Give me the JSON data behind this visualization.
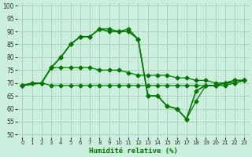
{
  "xlabel": "Humidité relative (%)",
  "background_color": "#cceedd",
  "grid_color": "#aaccbb",
  "line_color": "#007700",
  "xlim": [
    -0.5,
    23.5
  ],
  "ylim": [
    49,
    101
  ],
  "yticks": [
    50,
    55,
    60,
    65,
    70,
    75,
    80,
    85,
    90,
    95,
    100
  ],
  "xticks": [
    0,
    1,
    2,
    3,
    4,
    5,
    6,
    7,
    8,
    9,
    10,
    11,
    12,
    13,
    14,
    15,
    16,
    17,
    18,
    19,
    20,
    21,
    22,
    23
  ],
  "line1_x": [
    0,
    1,
    2,
    3,
    4,
    5,
    6,
    7,
    8,
    9,
    10,
    11,
    12,
    13,
    14,
    15,
    16,
    17,
    18,
    19,
    20,
    21,
    22,
    23
  ],
  "line1_y": [
    69,
    70,
    70,
    69,
    69,
    69,
    69,
    69,
    69,
    69,
    69,
    69,
    69,
    69,
    69,
    69,
    69,
    69,
    69,
    69,
    69,
    69,
    70,
    71
  ],
  "line2_x": [
    0,
    1,
    2,
    3,
    4,
    5,
    6,
    7,
    8,
    9,
    10,
    11,
    12,
    13,
    14,
    15,
    16,
    17,
    18,
    19,
    20,
    21,
    22,
    23
  ],
  "line2_y": [
    69,
    70,
    70,
    76,
    76,
    76,
    76,
    76,
    75,
    75,
    75,
    74,
    73,
    73,
    73,
    73,
    72,
    72,
    71,
    71,
    70,
    70,
    70,
    71
  ],
  "line3_x": [
    0,
    2,
    3,
    4,
    5,
    6,
    7,
    8,
    9,
    10,
    11,
    12,
    13,
    14,
    15,
    16,
    17,
    18,
    19,
    20,
    21,
    22,
    23
  ],
  "line3_y": [
    69,
    70,
    76,
    80,
    85,
    88,
    88,
    91,
    90,
    90,
    90,
    87,
    65,
    65,
    61,
    60,
    56,
    67,
    69,
    69,
    70,
    71,
    71
  ],
  "line4_x": [
    0,
    2,
    3,
    4,
    5,
    6,
    7,
    8,
    9,
    10,
    11,
    12,
    13,
    14,
    15,
    16,
    17,
    18,
    19,
    20,
    21,
    22,
    23
  ],
  "line4_y": [
    69,
    70,
    76,
    80,
    85,
    88,
    88,
    91,
    91,
    90,
    91,
    87,
    65,
    65,
    61,
    60,
    56,
    63,
    69,
    69,
    70,
    71,
    71
  ]
}
